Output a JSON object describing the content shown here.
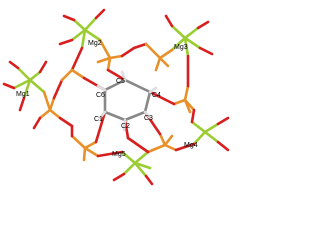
{
  "atoms": [
    {
      "label": "Mg1"
    },
    {
      "label": "Mg2"
    },
    {
      "label": "Mg3"
    },
    {
      "label": "Mg4"
    },
    {
      "label": "Mg5"
    },
    {
      "label": "C1"
    },
    {
      "label": "C2"
    },
    {
      "label": "C3"
    },
    {
      "label": "C4"
    },
    {
      "label": "C5"
    },
    {
      "label": "C6"
    }
  ]
}
